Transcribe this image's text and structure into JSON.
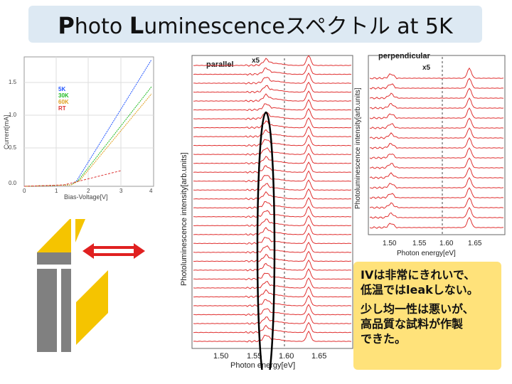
{
  "title": {
    "p_cap": "P",
    "p_rest": "hoto ",
    "l_cap": "L",
    "l_rest": "uminescenceスペクトル at 5K"
  },
  "iv_chart": {
    "ylabel": "Current[mA]",
    "xlabel": "Bias-Voltage[V]",
    "yticks": [
      "0.0",
      "0.5",
      "1.0",
      "1.5"
    ],
    "xticks": [
      "0",
      "1",
      "2",
      "3",
      "4"
    ],
    "legend": [
      {
        "label": "5K",
        "color": "#2255ff"
      },
      {
        "label": "30K",
        "color": "#22bb22"
      },
      {
        "label": "60K",
        "color": "#e0a020"
      },
      {
        "label": "RT",
        "color": "#dd3333"
      }
    ]
  },
  "pl_parallel": {
    "label": "parallel",
    "x5": "x5",
    "ylabel": "Photoluminescence intensity[arb.units]",
    "xlabel": "Photon energy[eV]",
    "xticks": [
      "1.50",
      "1.55",
      "1.60",
      "1.65"
    ]
  },
  "pl_perpendicular": {
    "label": "perpendicular",
    "x5": "x5",
    "ylabel": "Photoluminescence intensity[arb.units]",
    "xlabel": "Photon energy[eV]",
    "xticks": [
      "1.50",
      "1.55",
      "1.60",
      "1.65"
    ]
  },
  "note": {
    "line1": "IVは非常にきれいで、",
    "line2": "低温ではleakしない。",
    "line3": "少し均一性は悪いが、",
    "line4": "高品質な試料が作製",
    "line5": "できた。"
  },
  "colors": {
    "title_bg": "#dde9f3",
    "note_bg": "#ffe27a",
    "trace_red": "#e03030",
    "arrow_red": "#e02020",
    "gold": "#f5c400",
    "gray": "#808080"
  }
}
